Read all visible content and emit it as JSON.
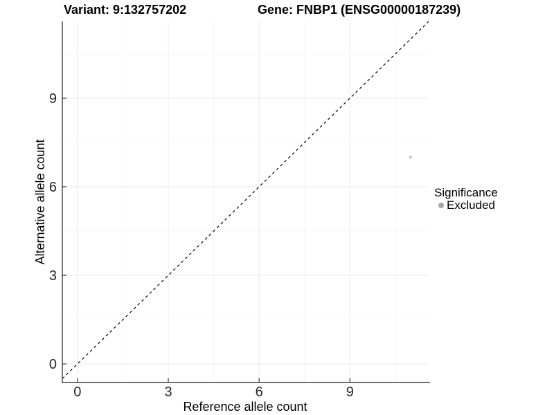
{
  "header": {
    "variant_title": "Variant: 9:132757202",
    "gene_title": "Gene: FNBP1 (ENSG00000187239)"
  },
  "chart_data": {
    "type": "scatter",
    "xlabel": "Reference allele count",
    "ylabel": "Alternative allele count",
    "xlim": [
      -0.5,
      11.6
    ],
    "ylim": [
      -0.63,
      11.6
    ],
    "x_major_ticks": [
      0,
      3,
      6,
      9
    ],
    "y_major_ticks": [
      0,
      3,
      6,
      9
    ],
    "x_minor_gridlines": [
      1.5,
      4.5,
      7.5,
      10.5
    ],
    "y_minor_gridlines": [
      1.5,
      4.5,
      7.5,
      10.5
    ],
    "grid": true,
    "identity_line": {
      "slope": 1,
      "intercept": 0,
      "style": "dashed",
      "color": "#000000"
    },
    "series": [
      {
        "name": "Excluded",
        "color": "#c2c2c2",
        "points": [
          {
            "x": 11,
            "y": 7
          }
        ]
      }
    ],
    "legend": {
      "title": "Significance",
      "position": "right",
      "items": [
        {
          "label": "Excluded",
          "color": "#a6a6a6"
        }
      ]
    }
  }
}
